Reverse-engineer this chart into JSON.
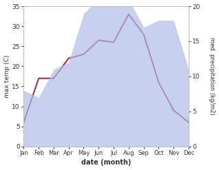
{
  "months": [
    "Jan",
    "Feb",
    "Mar",
    "Apr",
    "May",
    "Jun",
    "Jul",
    "Aug",
    "Sep",
    "Oct",
    "Nov",
    "Dec"
  ],
  "temperature": [
    6.0,
    17.0,
    17.0,
    22.0,
    23.0,
    26.5,
    26.0,
    33.0,
    28.0,
    16.0,
    9.0,
    6.0
  ],
  "precipitation": [
    8,
    7,
    11,
    12,
    19,
    21,
    21,
    21,
    17,
    18,
    18,
    11
  ],
  "temp_ylim": [
    0,
    35
  ],
  "precip_ylim": [
    0,
    20
  ],
  "temp_color": "#993344",
  "precip_fill_color": "#b0bce8",
  "ylabel_left": "max temp (C)",
  "ylabel_right": "med. precipitation (kg/m2)",
  "xlabel": "date (month)",
  "fig_width": 3.18,
  "fig_height": 2.47,
  "dpi": 100,
  "left_ticks": [
    0,
    5,
    10,
    15,
    20,
    25,
    30,
    35
  ],
  "right_ticks": [
    0,
    5,
    10,
    15,
    20
  ]
}
